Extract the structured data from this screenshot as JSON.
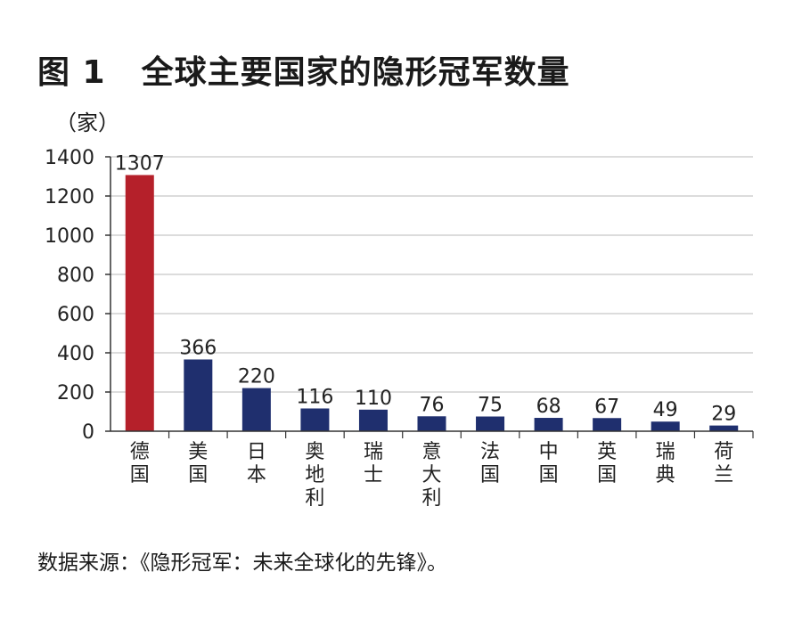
{
  "figure": {
    "number": "图 1",
    "title": "全球主要国家的隐形冠军数量",
    "unit": "（家）",
    "source": "数据来源：《隐形冠军：未来全球化的先锋》。"
  },
  "colors": {
    "highlight": "#b5202a",
    "bar": "#1f2f6e",
    "grid": "#c8c8c8",
    "axis": "#333333"
  },
  "chart_data": {
    "type": "bar",
    "title": "全球主要国家的隐形冠军数量",
    "ylabel": "（家）",
    "xlabel": "",
    "categories": [
      "德国",
      "美国",
      "日本",
      "奥地利",
      "瑞士",
      "意大利",
      "法国",
      "中国",
      "英国",
      "瑞典",
      "荷兰"
    ],
    "values": [
      1307,
      366,
      220,
      116,
      110,
      76,
      75,
      68,
      67,
      49,
      29
    ],
    "ylim": [
      0,
      1400
    ],
    "yticks": [
      0,
      200,
      400,
      600,
      800,
      1000,
      1200,
      1400
    ],
    "highlight_index": 0,
    "grid": true,
    "legend": "none"
  }
}
